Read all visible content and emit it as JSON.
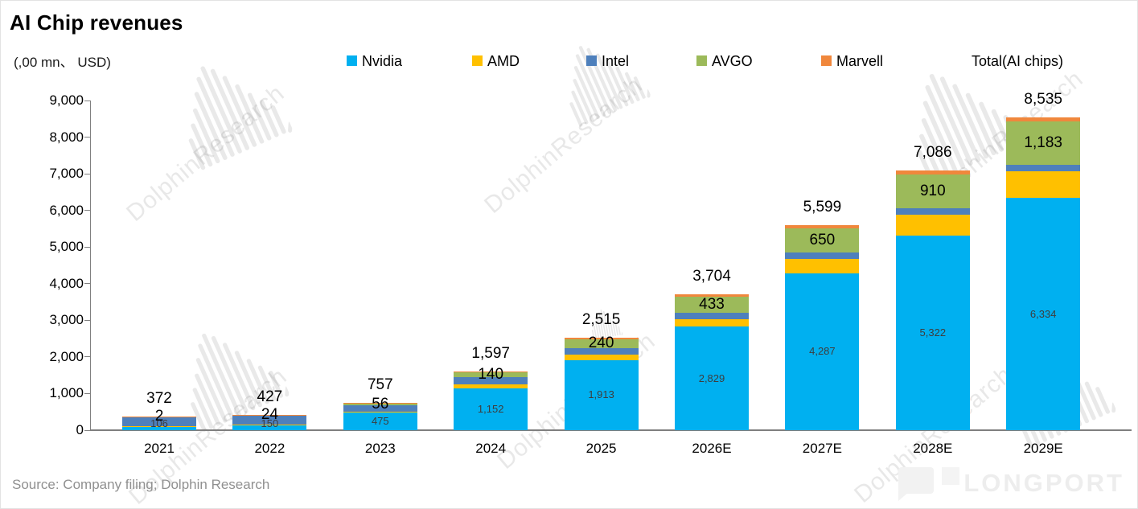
{
  "title": "AI Chip revenues",
  "unit_label": "(,00 mn、 USD)",
  "source": "Source: Company filing; Dolphin Research",
  "watermark": {
    "text": "DolphinResearch",
    "brand": "LONGPORT"
  },
  "legend": {
    "items": [
      {
        "label": "Nvidia",
        "color": "#00B0F0"
      },
      {
        "label": "AMD",
        "color": "#FFC000"
      },
      {
        "label": "Intel",
        "color": "#4E80BC"
      },
      {
        "label": "AVGO",
        "color": "#9CBA5A"
      },
      {
        "label": "Marvell",
        "color": "#F0873C"
      },
      {
        "label": "Total(AI chips)",
        "color": null
      }
    ]
  },
  "chart_data": {
    "type": "bar",
    "stacked": true,
    "title": "AI Chip revenues",
    "unit": "(,00 mn、 USD)",
    "categories": [
      "2021",
      "2022",
      "2023",
      "2024",
      "2025",
      "2026E",
      "2027E",
      "2028E",
      "2029E"
    ],
    "series": [
      {
        "name": "Nvidia",
        "color": "#00B0F0",
        "values": [
          106,
          150,
          475,
          1152,
          1913,
          2829,
          4287,
          5322,
          6334
        ],
        "labels": [
          "106",
          "150",
          "475",
          "1,152",
          "1,913",
          "2,829",
          "4,287",
          "5,322",
          "6,334"
        ]
      },
      {
        "name": "AMD",
        "color": "#FFC000",
        "values": [
          6,
          10,
          30,
          105,
          150,
          205,
          390,
          555,
          728
        ]
      },
      {
        "name": "Intel",
        "color": "#4E80BC",
        "values": [
          250,
          235,
          180,
          190,
          180,
          172,
          172,
          184,
          183
        ]
      },
      {
        "name": "AVGO",
        "color": "#9CBA5A",
        "values": [
          2,
          24,
          56,
          140,
          240,
          433,
          650,
          910,
          1183
        ],
        "labels": [
          "2",
          "24",
          "56",
          "140",
          "240",
          "433",
          "650",
          "910",
          "1,183"
        ]
      },
      {
        "name": "Marvell",
        "color": "#F0873C",
        "values": [
          8,
          8,
          16,
          10,
          32,
          65,
          100,
          115,
          107
        ]
      }
    ],
    "totals": {
      "name": "Total(AI chips)",
      "values": [
        372,
        427,
        757,
        1597,
        2515,
        3704,
        5599,
        7086,
        8535
      ],
      "labels": [
        "372",
        "427",
        "757",
        "1,597",
        "2,515",
        "3,704",
        "5,599",
        "7,086",
        "8,535"
      ]
    },
    "ylim": [
      0,
      9000
    ],
    "ytick_step": 1000,
    "yticks": [
      "0",
      "1,000",
      "2,000",
      "3,000",
      "4,000",
      "5,000",
      "6,000",
      "7,000",
      "8,000",
      "9,000"
    ],
    "grid": false,
    "legend_position": "top"
  }
}
